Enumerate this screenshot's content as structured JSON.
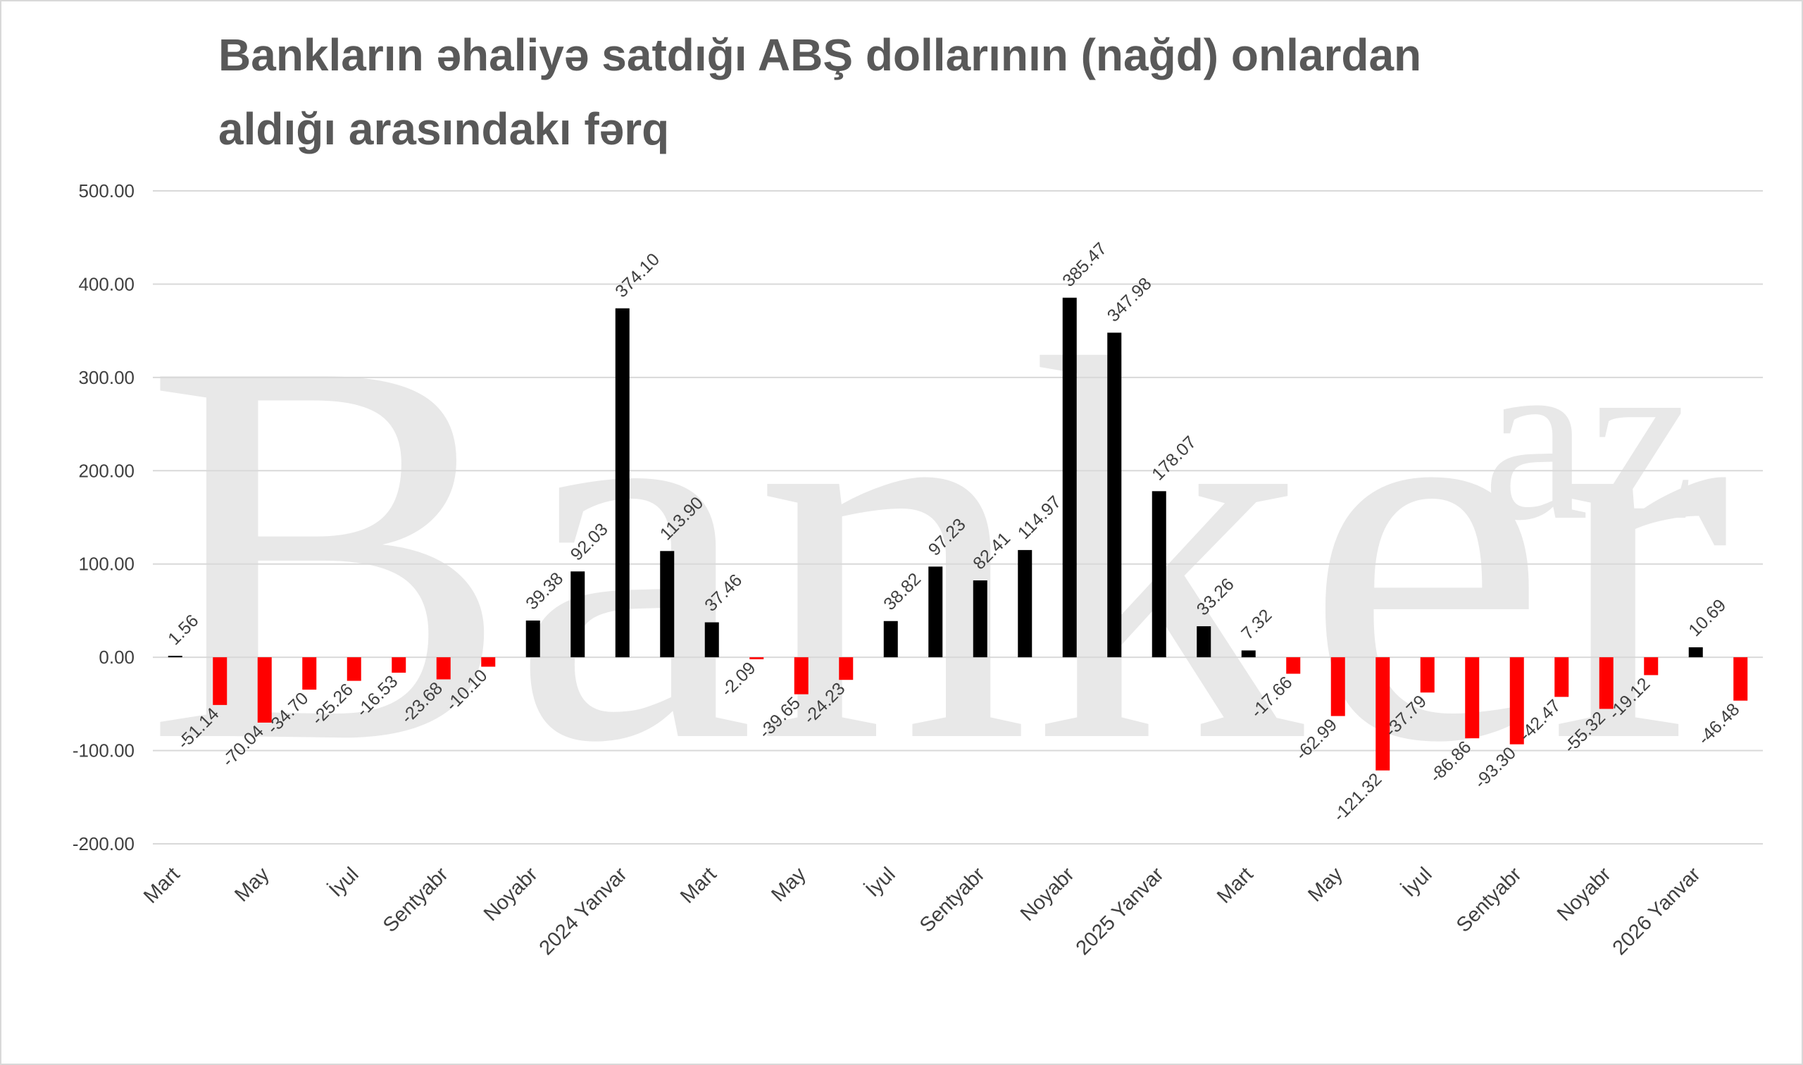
{
  "chart_data": {
    "type": "bar",
    "title": [
      "Bankların əhaliyə satdığı ABŞ dollarının (nağd) onlardan",
      "aldığı arasındakı fərq"
    ],
    "watermark": [
      "Banker",
      "az"
    ],
    "categories": [
      "Mart",
      null,
      "May",
      null,
      "İyul",
      null,
      "Sentyabr",
      null,
      "Noyabr",
      null,
      "2024 Yanvar",
      null,
      "Mart",
      null,
      "May",
      null,
      "İyul",
      null,
      "Sentyabr",
      null,
      "Noyabr",
      null,
      "2025 Yanvar",
      null,
      "Mart",
      null,
      "May",
      null,
      "İyul",
      null,
      "Sentyabr",
      null,
      "Noyabr",
      null,
      "2026 Yanvar",
      null
    ],
    "values": [
      1.56,
      -51.14,
      -70.04,
      -34.7,
      -25.26,
      -16.53,
      -23.68,
      -10.1,
      39.38,
      92.03,
      374.1,
      113.9,
      37.46,
      -2.09,
      -39.65,
      -24.23,
      38.82,
      97.23,
      82.41,
      114.97,
      385.47,
      347.98,
      178.07,
      33.26,
      7.32,
      -17.66,
      -62.99,
      -121.32,
      -37.79,
      -86.86,
      -93.3,
      -42.47,
      -55.32,
      -19.12,
      10.69,
      -46.48
    ],
    "value_labels": [
      "1.56",
      "-51.14",
      "-70.04",
      "-34.70",
      "-25.26",
      "-16.53",
      "-23.68",
      "-10.10",
      "39.38",
      "92.03",
      "374.10",
      "113.90",
      "37.46",
      "-2.09",
      "-39.65",
      "-24.23",
      "38.82",
      "97.23",
      "82.41",
      "114.97",
      "385.47",
      "347.98",
      "178.07",
      "33.26",
      "7.32",
      "-17.66",
      "-62.99",
      "-121.32",
      "-37.79",
      "-86.86",
      "-93.30",
      "-42.47",
      "-55.32",
      "-19.12",
      "10.69",
      "-46.48"
    ],
    "color_positive": "#000000",
    "color_negative": "#ff0000",
    "ylim": [
      -200,
      500
    ],
    "yticks": [
      {
        "value": -200,
        "label": "-200.00"
      },
      {
        "value": -100,
        "label": "-100.00"
      },
      {
        "value": 0,
        "label": "0.00"
      },
      {
        "value": 100,
        "label": "100.00"
      },
      {
        "value": 200,
        "label": "200.00"
      },
      {
        "value": 300,
        "label": "300.00"
      },
      {
        "value": 400,
        "label": "400.00"
      },
      {
        "value": 500,
        "label": "500.00"
      }
    ],
    "grid": true
  }
}
